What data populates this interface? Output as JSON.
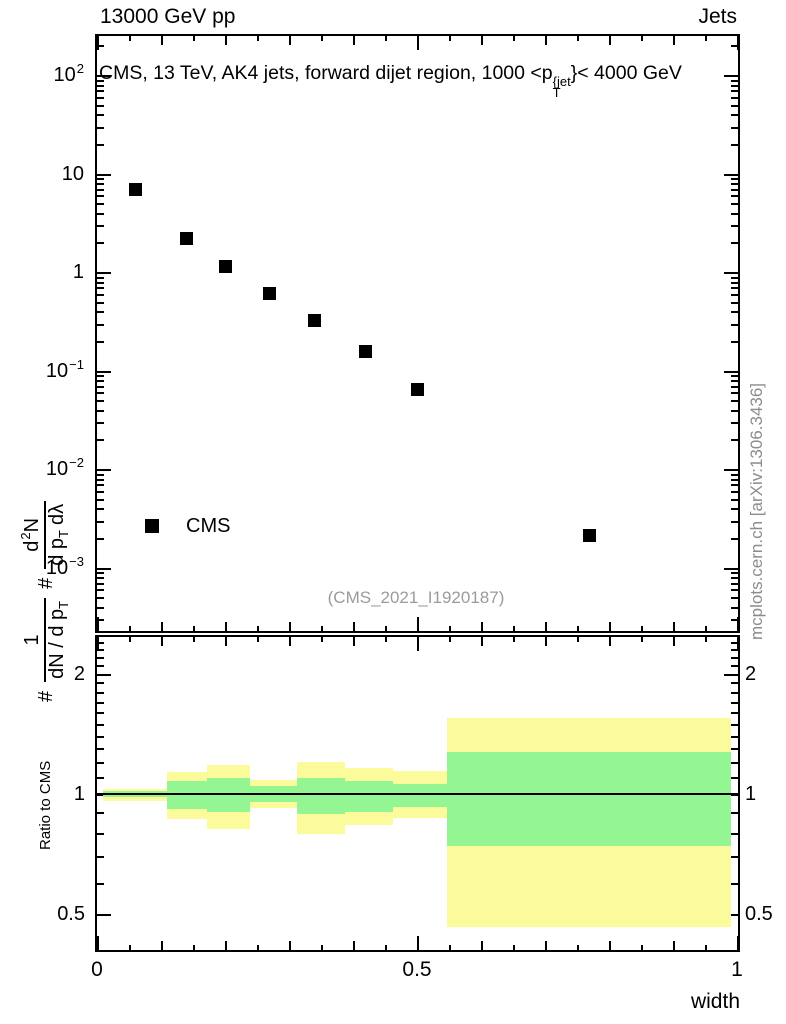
{
  "header": {
    "left": "13000 GeV pp",
    "right": "Jets"
  },
  "main": {
    "title": {
      "prefix": "CMS, 13 TeV, AK4 jets, forward dijet region, 1000 <p",
      "p_sup": "{jet",
      "p_sub": "T",
      "suffix": "}< 4000 GeV"
    },
    "ylabel": {
      "hash1": "#",
      "frac1_num": "1",
      "frac1_den": "dN / d p",
      "frac1_den_sub": "T",
      "hash2": "#",
      "frac2_num_d": "d",
      "frac2_num_sup": "2",
      "frac2_num_n": "N",
      "frac2_den": "d p",
      "frac2_den_sub": "T",
      "frac2_den_tail": "dλ"
    },
    "legend_label": "CMS",
    "watermark": "(CMS_2021_I1920187)",
    "side_note": "mcplots.cern.ch [arXiv:1306.3436]",
    "yticks": [
      {
        "base": "10",
        "exp": "2",
        "value": 100
      },
      {
        "base": "10",
        "exp": "",
        "value": 10
      },
      {
        "base": "1",
        "exp": "",
        "value": 1
      },
      {
        "base": "10",
        "exp": "−1",
        "value": 0.1
      },
      {
        "base": "10",
        "exp": "−2",
        "value": 0.01
      },
      {
        "base": "10",
        "exp": "−3",
        "value": 0.001
      }
    ]
  },
  "xaxis": {
    "title": "width",
    "ticks": [
      {
        "label": "0",
        "value": 0
      },
      {
        "label": "0.5",
        "value": 0.5
      },
      {
        "label": "1",
        "value": 1
      }
    ]
  },
  "ratio": {
    "ylabel": "Ratio to CMS",
    "yticks": [
      {
        "label": "2",
        "value": 2
      },
      {
        "label": "1",
        "value": 1
      },
      {
        "label": "0.5",
        "value": 0.5
      }
    ]
  },
  "colors": {
    "band_outer_yellow": "#fbfb9b",
    "band_inner_green": "#93f693",
    "marker_black": "#000000",
    "watermark_gray": "#9b9b9b",
    "note_gray": "#8c8c8c"
  },
  "chart_data": {
    "type": "scatter",
    "title": "CMS, 13 TeV, AK4 jets, forward dijet region, 1000 < pT{jet} < 4000 GeV",
    "xlabel": "width",
    "xlim": [
      0,
      1
    ],
    "main_axis": {
      "scale": "log",
      "ylim": [
        0.000216,
        261
      ]
    },
    "series": [
      {
        "name": "CMS",
        "marker": "filled-square",
        "points": [
          [
            0.06,
            6.8
          ],
          [
            0.14,
            2.2
          ],
          [
            0.2,
            1.15
          ],
          [
            0.27,
            0.61
          ],
          [
            0.34,
            0.32
          ],
          [
            0.42,
            0.155
          ],
          [
            0.5,
            0.064
          ],
          [
            0.77,
            0.0021
          ]
        ]
      }
    ],
    "ratio_panel": {
      "scale": "log",
      "ylim": [
        0.403,
        2.49
      ],
      "reference_line": 1,
      "bins": [
        {
          "x": [
            0.01,
            0.11
          ],
          "yellow": [
            0.963,
            1.028
          ],
          "green": [
            0.985,
            1.015
          ]
        },
        {
          "x": [
            0.11,
            0.172
          ],
          "yellow": [
            0.866,
            1.136
          ],
          "green": [
            0.917,
            1.078
          ]
        },
        {
          "x": [
            0.172,
            0.239
          ],
          "yellow": [
            0.818,
            1.185
          ],
          "green": [
            0.904,
            1.095
          ]
        },
        {
          "x": [
            0.239,
            0.312
          ],
          "yellow": [
            0.924,
            1.082
          ],
          "green": [
            0.953,
            1.048
          ]
        },
        {
          "x": [
            0.312,
            0.388
          ],
          "yellow": [
            0.795,
            1.2
          ],
          "green": [
            0.893,
            1.096
          ]
        },
        {
          "x": [
            0.388,
            0.462
          ],
          "yellow": [
            0.838,
            1.16
          ],
          "green": [
            0.903,
            1.076
          ]
        },
        {
          "x": [
            0.462,
            0.547
          ],
          "yellow": [
            0.872,
            1.142
          ],
          "green": [
            0.928,
            1.06
          ]
        },
        {
          "x": [
            0.547,
            0.99
          ],
          "yellow": [
            0.465,
            1.545
          ],
          "green": [
            0.74,
            1.275
          ]
        }
      ]
    }
  }
}
